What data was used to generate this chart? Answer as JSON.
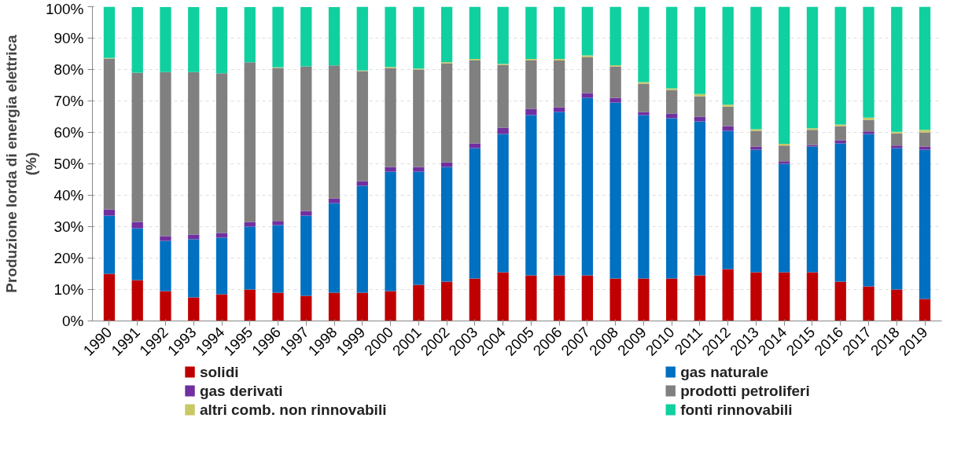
{
  "chart_data": {
    "type": "bar",
    "stacked": true,
    "ylabel": "Produzione lorda di energia elettrica\n(%)",
    "categories": [
      "1990",
      "1991",
      "1992",
      "1993",
      "1994",
      "1995",
      "1996",
      "1997",
      "1998",
      "1999",
      "2000",
      "2001",
      "2002",
      "2003",
      "2004",
      "2005",
      "2006",
      "2007",
      "2008",
      "2009",
      "2010",
      "2011",
      "2012",
      "2013",
      "2014",
      "2015",
      "2016",
      "2017",
      "2018",
      "2019"
    ],
    "series": [
      {
        "name": "solidi",
        "color": "#c00000",
        "values": [
          15,
          13,
          9.5,
          7.5,
          8.5,
          10,
          9,
          8,
          9,
          9,
          9.5,
          11.5,
          12.5,
          13.5,
          15.5,
          14.5,
          14.5,
          14.5,
          13.5,
          13.5,
          13.5,
          14.5,
          16.5,
          15.5,
          15.5,
          15.5,
          12.5,
          11,
          10,
          7
        ]
      },
      {
        "name": "gas naturale",
        "color": "#0070c0",
        "values": [
          18.5,
          16.5,
          16,
          18.5,
          18,
          20,
          21.5,
          25.5,
          28.5,
          34,
          38,
          36,
          36.5,
          41.5,
          44,
          51,
          52,
          56.5,
          56,
          52,
          51,
          49,
          44,
          39,
          34.5,
          40,
          44,
          48.5,
          45,
          47.5
        ]
      },
      {
        "name": "gas derivati",
        "color": "#7030a0",
        "values": [
          2,
          2,
          1.5,
          1.5,
          1.5,
          1.5,
          1.3,
          1.5,
          1.5,
          1.5,
          1.5,
          1.5,
          1.5,
          1.5,
          2,
          2,
          1.5,
          1.5,
          1.5,
          1,
          1.5,
          1.5,
          1.5,
          1,
          0.8,
          0.5,
          1,
          0.8,
          0.8,
          1
        ]
      },
      {
        "name": "prodotti petroliferi",
        "color": "#808080",
        "values": [
          48,
          47.5,
          52.2,
          51.7,
          50.8,
          50.8,
          48.7,
          46,
          42.3,
          35,
          31.5,
          31,
          31.5,
          26.5,
          20,
          15.5,
          15,
          11.5,
          10,
          9,
          7.5,
          6.5,
          6.2,
          5,
          5,
          4.8,
          4.5,
          3.7,
          3.9,
          4.5
        ]
      },
      {
        "name": "altri comb. non rinnovabili",
        "color": "#c8c864",
        "values": [
          0.2,
          null,
          null,
          null,
          null,
          null,
          0.2,
          null,
          null,
          0.2,
          0.3,
          0.3,
          0.4,
          0.4,
          0.3,
          0.4,
          0.4,
          0.5,
          0.4,
          0.5,
          0.5,
          0.7,
          0.6,
          0.5,
          0.6,
          0.5,
          0.5,
          0.7,
          0.5,
          0.8
        ]
      },
      {
        "name": "fonti rinnovabili",
        "color": "#10d0a0",
        "values": [
          16.3,
          20.9,
          20.7,
          20.7,
          21.1,
          17.6,
          19.3,
          18.9,
          18.6,
          20.3,
          19.2,
          19.7,
          17.6,
          16.6,
          18.2,
          16.6,
          16.6,
          15.5,
          18.6,
          24,
          26,
          27.8,
          31.2,
          39,
          43.6,
          38.7,
          37.5,
          35.3,
          39.8,
          39.2
        ]
      }
    ],
    "ylim": [
      0,
      100
    ],
    "yticks": [
      {
        "value": 0,
        "label": "0%"
      },
      {
        "value": 10,
        "label": "10%"
      },
      {
        "value": 20,
        "label": "20%"
      },
      {
        "value": 30,
        "label": "30%"
      },
      {
        "value": 40,
        "label": "40%"
      },
      {
        "value": 50,
        "label": "50%"
      },
      {
        "value": 60,
        "label": "60%"
      },
      {
        "value": 70,
        "label": "70%"
      },
      {
        "value": 80,
        "label": "80%"
      },
      {
        "value": 90,
        "label": "90%"
      },
      {
        "value": 100,
        "label": "100%"
      }
    ],
    "grid": "y",
    "legend": "bottom"
  }
}
